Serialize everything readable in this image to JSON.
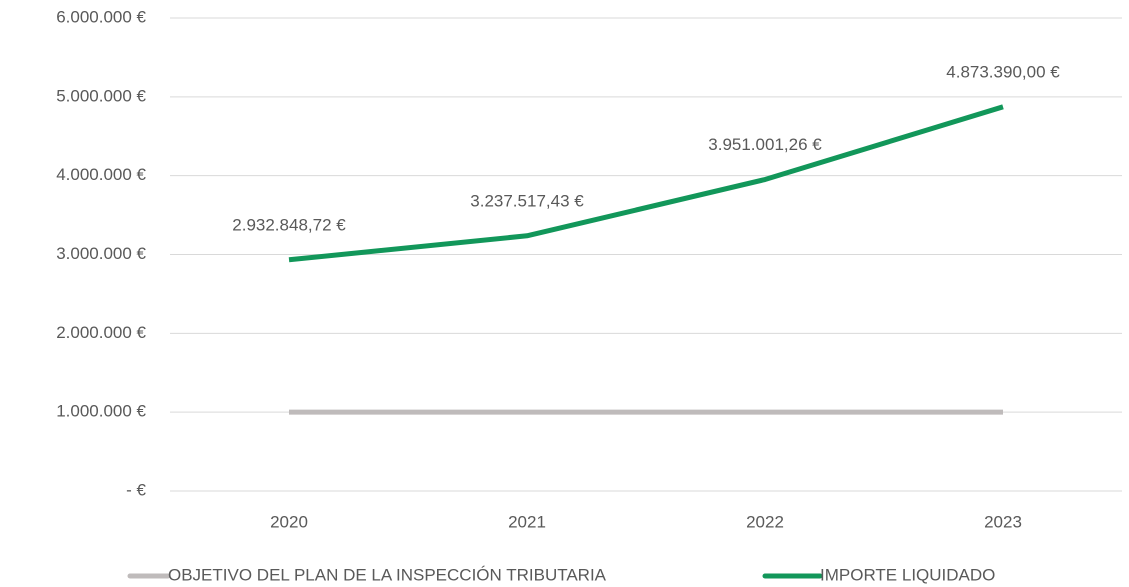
{
  "chart_data": {
    "type": "line",
    "categories": [
      "2020",
      "2021",
      "2022",
      "2023"
    ],
    "series": [
      {
        "name": "OBJETIVO DEL PLAN DE LA INSPECCIÓN TRIBUTARIA",
        "color": "#bfbbbb",
        "values": [
          1000000,
          1000000,
          1000000,
          1000000
        ]
      },
      {
        "name": "IMPORTE LIQUIDADO",
        "color": "#12975a",
        "values": [
          2932848.72,
          3237517.43,
          3951001.26,
          4873390.0
        ],
        "value_labels": [
          "2.932.848,72 €",
          "3.237.517,43 €",
          "3.951.001,26 €",
          "4.873.390,00 €"
        ]
      }
    ],
    "ylim": [
      0,
      6000000
    ],
    "yticks": [
      {
        "value": 0,
        "label": "-  €"
      },
      {
        "value": 1000000,
        "label": "1.000.000 €"
      },
      {
        "value": 2000000,
        "label": "2.000.000 €"
      },
      {
        "value": 3000000,
        "label": "3.000.000 €"
      },
      {
        "value": 4000000,
        "label": "4.000.000 €"
      },
      {
        "value": 5000000,
        "label": "5.000.000 €"
      },
      {
        "value": 6000000,
        "label": "6.000.000 €"
      }
    ],
    "grid": true,
    "legend": "bottom"
  }
}
